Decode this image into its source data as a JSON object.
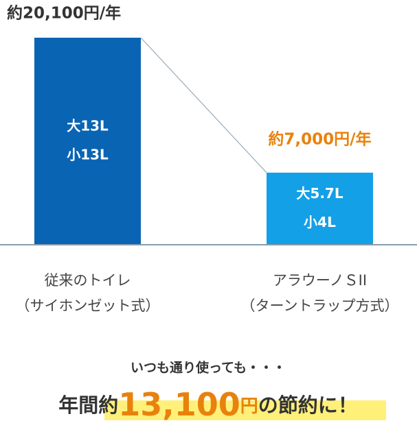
{
  "chart_data": {
    "type": "bar",
    "categories": [
      "従来のトイレ",
      "アラウーノＳII"
    ],
    "category_notes": [
      "（サイホンゼット式）",
      "（ターントラップ方式）"
    ],
    "values": [
      20100,
      7000
    ],
    "value_labels": [
      "約20,100円/年",
      "約7,000円/年"
    ],
    "value_label_colors": [
      "#333333",
      "#e8820c"
    ],
    "colors": [
      "#0a64b4",
      "#14a0e6"
    ],
    "inner_labels": [
      [
        "大13L",
        "小13L"
      ],
      [
        "大5.7L",
        "小4L"
      ]
    ]
  },
  "footer": {
    "note": "いつも通り使っても・・・",
    "prefix": "年間約",
    "amount": "13,100",
    "unit": "円",
    "suffix": "の節約に！"
  }
}
